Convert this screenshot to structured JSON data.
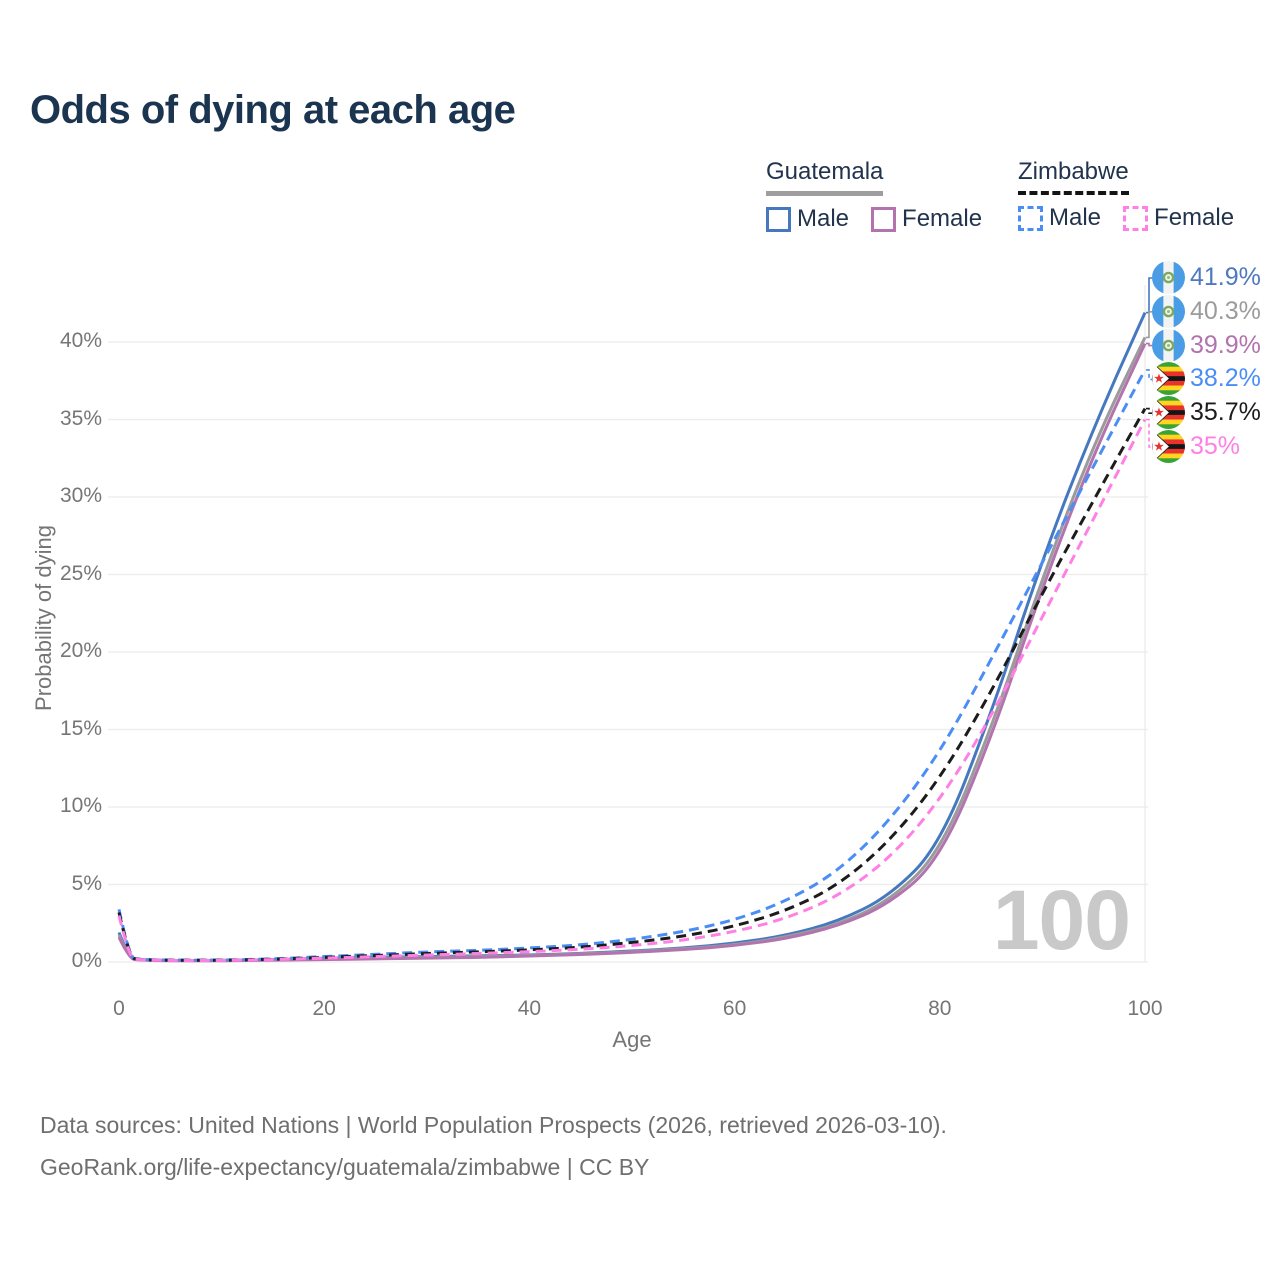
{
  "title": "Odds of dying at each age",
  "watermark": "100",
  "legend": {
    "groups": [
      {
        "country": "Guatemala",
        "underline": "solid",
        "items": [
          {
            "label": "Male"
          },
          {
            "label": "Female"
          }
        ]
      },
      {
        "country": "Zimbabwe",
        "underline": "dashed",
        "items": [
          {
            "label": "Male"
          },
          {
            "label": "Female"
          }
        ]
      }
    ]
  },
  "footer": {
    "line1": "Data sources: United Nations | World Population Prospects (2026, retrieved 2026-03-10).",
    "line2": "GeoRank.org/life-expectancy/guatemala/zimbabwe | CC BY"
  },
  "chart_data": {
    "type": "line",
    "title": "Odds of dying at each age",
    "xlabel": "Age",
    "ylabel": "Probability of dying",
    "x_ticks": [
      0,
      20,
      40,
      60,
      80,
      100
    ],
    "y_ticks": [
      "0%",
      "5%",
      "10%",
      "15%",
      "20%",
      "25%",
      "30%",
      "35%",
      "40%"
    ],
    "xlim": [
      0,
      100
    ],
    "ylim_percent": [
      0,
      44
    ],
    "grid": "horizontal",
    "x": [
      0,
      1,
      2,
      5,
      10,
      15,
      20,
      25,
      30,
      35,
      40,
      45,
      50,
      55,
      60,
      65,
      70,
      75,
      80,
      85,
      90,
      95,
      100
    ],
    "series": [
      {
        "name": "Guatemala Male",
        "flag": "guatemala",
        "color": "#4678bf",
        "label_color": "#4e79c1",
        "dash": "solid",
        "end_label": "41.9%",
        "values": [
          1.9,
          0.25,
          0.15,
          0.1,
          0.1,
          0.15,
          0.25,
          0.3,
          0.35,
          0.4,
          0.45,
          0.55,
          0.7,
          0.9,
          1.2,
          1.7,
          2.6,
          4.2,
          7.5,
          16.0,
          26.0,
          34.5,
          41.9
        ]
      },
      {
        "name": "Guatemala Both sexes",
        "flag": "guatemala",
        "color": "#9b9b9b",
        "label_color": "#9b9b9b",
        "dash": "solid",
        "end_label": "40.3%",
        "values": [
          1.75,
          0.22,
          0.13,
          0.09,
          0.09,
          0.13,
          0.2,
          0.25,
          0.3,
          0.35,
          0.42,
          0.52,
          0.66,
          0.85,
          1.1,
          1.6,
          2.4,
          3.9,
          7.0,
          15.0,
          24.8,
          33.4,
          40.3
        ]
      },
      {
        "name": "Guatemala Female",
        "flag": "guatemala",
        "color": "#b273ae",
        "label_color": "#b273ae",
        "dash": "solid",
        "end_label": "39.9%",
        "values": [
          1.6,
          0.2,
          0.12,
          0.08,
          0.08,
          0.11,
          0.16,
          0.2,
          0.25,
          0.3,
          0.38,
          0.48,
          0.62,
          0.8,
          1.05,
          1.5,
          2.3,
          3.7,
          6.6,
          14.4,
          24.2,
          32.8,
          39.9
        ]
      },
      {
        "name": "Zimbabwe Male",
        "flag": "zimbabwe",
        "color": "#4a8ef5",
        "label_color": "#4a8ef5",
        "dash": "dashed",
        "end_label": "38.2%",
        "values": [
          3.4,
          0.3,
          0.17,
          0.12,
          0.12,
          0.2,
          0.35,
          0.5,
          0.65,
          0.75,
          0.9,
          1.1,
          1.45,
          1.95,
          2.7,
          3.9,
          5.8,
          9.0,
          13.5,
          19.5,
          25.8,
          32.0,
          38.2
        ]
      },
      {
        "name": "Zimbabwe Both sexes",
        "flag": "zimbabwe",
        "color": "#1c1c1c",
        "label_color": "#1c1c1c",
        "dash": "dashed",
        "end_label": "35.7%",
        "values": [
          3.2,
          0.28,
          0.15,
          0.11,
          0.11,
          0.17,
          0.3,
          0.42,
          0.55,
          0.65,
          0.78,
          0.95,
          1.25,
          1.65,
          2.3,
          3.3,
          4.9,
          7.7,
          11.8,
          17.4,
          23.8,
          29.8,
          35.7
        ]
      },
      {
        "name": "Zimbabwe Female",
        "flag": "zimbabwe",
        "color": "#ff80e5",
        "label_color": "#ff80e5",
        "dash": "dashed",
        "end_label": "35%",
        "values": [
          3.0,
          0.26,
          0.14,
          0.1,
          0.1,
          0.15,
          0.25,
          0.35,
          0.45,
          0.55,
          0.66,
          0.82,
          1.05,
          1.4,
          1.95,
          2.8,
          4.2,
          6.6,
          10.4,
          15.8,
          22.3,
          28.6,
          35.0
        ]
      }
    ]
  }
}
